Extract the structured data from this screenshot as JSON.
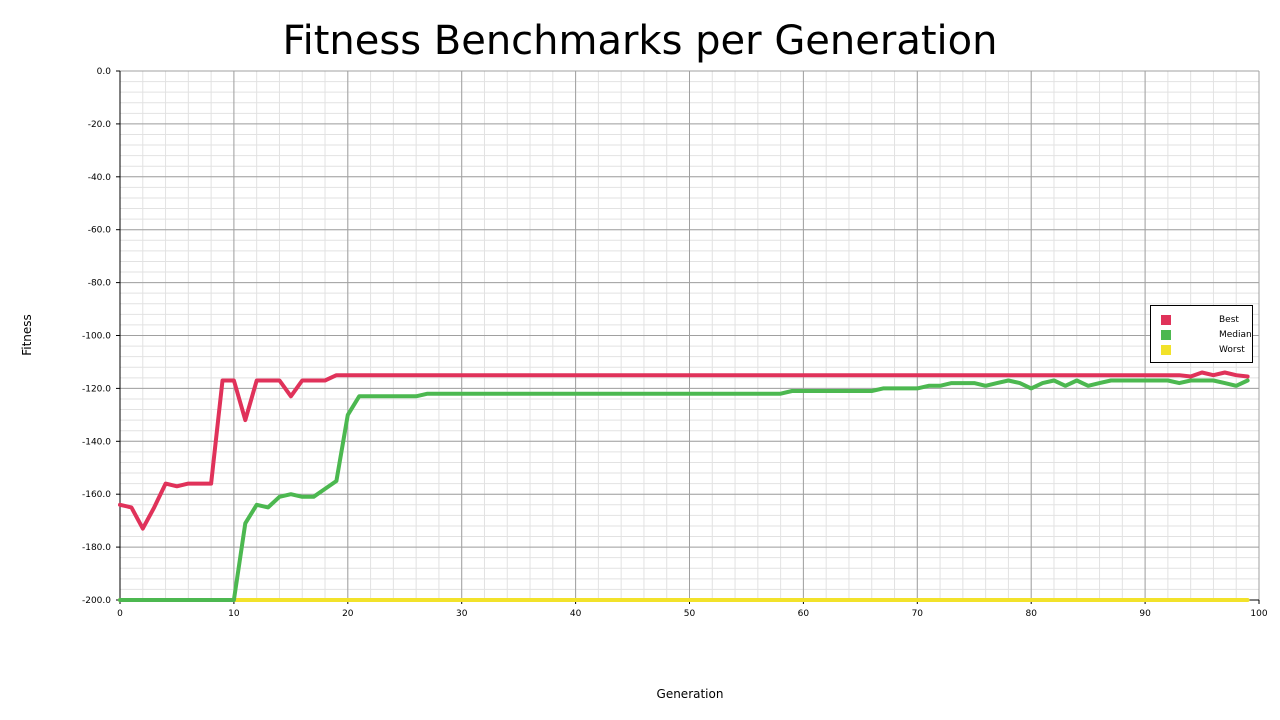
{
  "chart_data": {
    "type": "line",
    "title": "Fitness Benchmarks per Generation",
    "xlabel": "Generation",
    "ylabel": "Fitness",
    "xlim": [
      0,
      100
    ],
    "ylim": [
      -200,
      0
    ],
    "x_ticks": [
      "0",
      "10",
      "20",
      "30",
      "40",
      "50",
      "60",
      "70",
      "80",
      "90",
      "100"
    ],
    "y_ticks": [
      "0.0",
      "-20.0",
      "-40.0",
      "-60.0",
      "-80.0",
      "-100.0",
      "-120.0",
      "-140.0",
      "-160.0",
      "-180.0",
      "-200.0"
    ],
    "grid": true,
    "legend_position": "right",
    "series": [
      {
        "name": "Best",
        "color": "#e0325a",
        "x": [
          0,
          1,
          2,
          3,
          4,
          5,
          6,
          7,
          8,
          9,
          10,
          11,
          12,
          13,
          14,
          15,
          16,
          17,
          18,
          19,
          20,
          21,
          22,
          23,
          24,
          25,
          26,
          27,
          28,
          29,
          30,
          31,
          32,
          33,
          34,
          35,
          36,
          37,
          38,
          39,
          40,
          41,
          42,
          43,
          44,
          45,
          46,
          47,
          48,
          49,
          50,
          51,
          52,
          53,
          54,
          55,
          56,
          57,
          58,
          59,
          60,
          61,
          62,
          63,
          64,
          65,
          66,
          67,
          68,
          69,
          70,
          71,
          72,
          73,
          74,
          75,
          76,
          77,
          78,
          79,
          80,
          81,
          82,
          83,
          84,
          85,
          86,
          87,
          88,
          89,
          90,
          91,
          92,
          93,
          94,
          95,
          96,
          97,
          98,
          99
        ],
        "values": [
          -164,
          -165,
          -173,
          -165,
          -156,
          -157,
          -156,
          -156,
          -156,
          -117,
          -117,
          -132,
          -117,
          -117,
          -117,
          -123,
          -117,
          -117,
          -117,
          -115,
          -115,
          -115,
          -115,
          -115,
          -115,
          -115,
          -115,
          -115,
          -115,
          -115,
          -115,
          -115,
          -115,
          -115,
          -115,
          -115,
          -115,
          -115,
          -115,
          -115,
          -115,
          -115,
          -115,
          -115,
          -115,
          -115,
          -115,
          -115,
          -115,
          -115,
          -115,
          -115,
          -115,
          -115,
          -115,
          -115,
          -115,
          -115,
          -115,
          -115,
          -115,
          -115,
          -115,
          -115,
          -115,
          -115,
          -115,
          -115,
          -115,
          -115,
          -115,
          -115,
          -115,
          -115,
          -115,
          -115,
          -115,
          -115,
          -115,
          -115,
          -115,
          -115,
          -115,
          -115,
          -115,
          -115,
          -115,
          -115,
          -115,
          -115,
          -115,
          -115,
          -115,
          -115,
          -115.5,
          -114,
          -115,
          -114,
          -115,
          -115.5
        ]
      },
      {
        "name": "Median",
        "color": "#4cb850",
        "x": [
          0,
          1,
          2,
          3,
          4,
          5,
          6,
          7,
          8,
          9,
          10,
          11,
          12,
          13,
          14,
          15,
          16,
          17,
          18,
          19,
          20,
          21,
          22,
          23,
          24,
          25,
          26,
          27,
          28,
          29,
          30,
          31,
          32,
          33,
          34,
          35,
          36,
          37,
          38,
          39,
          40,
          41,
          42,
          43,
          44,
          45,
          46,
          47,
          48,
          49,
          50,
          51,
          52,
          53,
          54,
          55,
          56,
          57,
          58,
          59,
          60,
          61,
          62,
          63,
          64,
          65,
          66,
          67,
          68,
          69,
          70,
          71,
          72,
          73,
          74,
          75,
          76,
          77,
          78,
          79,
          80,
          81,
          82,
          83,
          84,
          85,
          86,
          87,
          88,
          89,
          90,
          91,
          92,
          93,
          94,
          95,
          96,
          97,
          98,
          99
        ],
        "values": [
          -200,
          -200,
          -200,
          -200,
          -200,
          -200,
          -200,
          -200,
          -200,
          -200,
          -200,
          -171,
          -164,
          -165,
          -161,
          -160,
          -161,
          -161,
          -158,
          -155,
          -130,
          -123,
          -123,
          -123,
          -123,
          -123,
          -123,
          -122,
          -122,
          -122,
          -122,
          -122,
          -122,
          -122,
          -122,
          -122,
          -122,
          -122,
          -122,
          -122,
          -122,
          -122,
          -122,
          -122,
          -122,
          -122,
          -122,
          -122,
          -122,
          -122,
          -122,
          -122,
          -122,
          -122,
          -122,
          -122,
          -122,
          -122,
          -122,
          -121,
          -121,
          -121,
          -121,
          -121,
          -121,
          -121,
          -121,
          -120,
          -120,
          -120,
          -120,
          -119,
          -119,
          -118,
          -118,
          -118,
          -119,
          -118,
          -117,
          -118,
          -120,
          -118,
          -117,
          -119,
          -117,
          -119,
          -118,
          -117,
          -117,
          -117,
          -117,
          -117,
          -117,
          -118,
          -117,
          -117,
          -117,
          -118,
          -119,
          -117
        ]
      },
      {
        "name": "Worst",
        "color": "#f2e22a",
        "x": [
          0,
          1,
          2,
          3,
          4,
          5,
          6,
          7,
          8,
          9,
          10,
          11,
          12,
          13,
          14,
          15,
          16,
          17,
          18,
          19,
          20,
          21,
          22,
          23,
          24,
          25,
          26,
          27,
          28,
          29,
          30,
          31,
          32,
          33,
          34,
          35,
          36,
          37,
          38,
          39,
          40,
          41,
          42,
          43,
          44,
          45,
          46,
          47,
          48,
          49,
          50,
          51,
          52,
          53,
          54,
          55,
          56,
          57,
          58,
          59,
          60,
          61,
          62,
          63,
          64,
          65,
          66,
          67,
          68,
          69,
          70,
          71,
          72,
          73,
          74,
          75,
          76,
          77,
          78,
          79,
          80,
          81,
          82,
          83,
          84,
          85,
          86,
          87,
          88,
          89,
          90,
          91,
          92,
          93,
          94,
          95,
          96,
          97,
          98,
          99
        ],
        "values": [
          -200,
          -200,
          -200,
          -200,
          -200,
          -200,
          -200,
          -200,
          -200,
          -200,
          -200,
          -200,
          -200,
          -200,
          -200,
          -200,
          -200,
          -200,
          -200,
          -200,
          -200,
          -200,
          -200,
          -200,
          -200,
          -200,
          -200,
          -200,
          -200,
          -200,
          -200,
          -200,
          -200,
          -200,
          -200,
          -200,
          -200,
          -200,
          -200,
          -200,
          -200,
          -200,
          -200,
          -200,
          -200,
          -200,
          -200,
          -200,
          -200,
          -200,
          -200,
          -200,
          -200,
          -200,
          -200,
          -200,
          -200,
          -200,
          -200,
          -200,
          -200,
          -200,
          -200,
          -200,
          -200,
          -200,
          -200,
          -200,
          -200,
          -200,
          -200,
          -200,
          -200,
          -200,
          -200,
          -200,
          -200,
          -200,
          -200,
          -200,
          -200,
          -200,
          -200,
          -200,
          -200,
          -200,
          -200,
          -200,
          -200,
          -200,
          -200,
          -200,
          -200,
          -200,
          -200,
          -200,
          -200,
          -200,
          -200,
          -200
        ]
      }
    ]
  }
}
